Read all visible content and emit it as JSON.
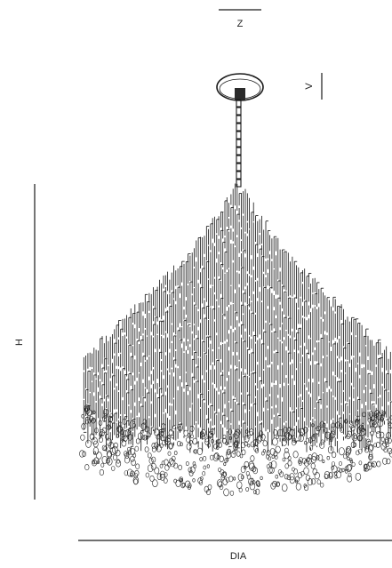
{
  "dimensions": {
    "z_label": "Z",
    "v_label": "V",
    "h_label": "H",
    "dia_label": "DIA"
  },
  "colors": {
    "line": "#1a1a1a",
    "background": "#ffffff"
  }
}
